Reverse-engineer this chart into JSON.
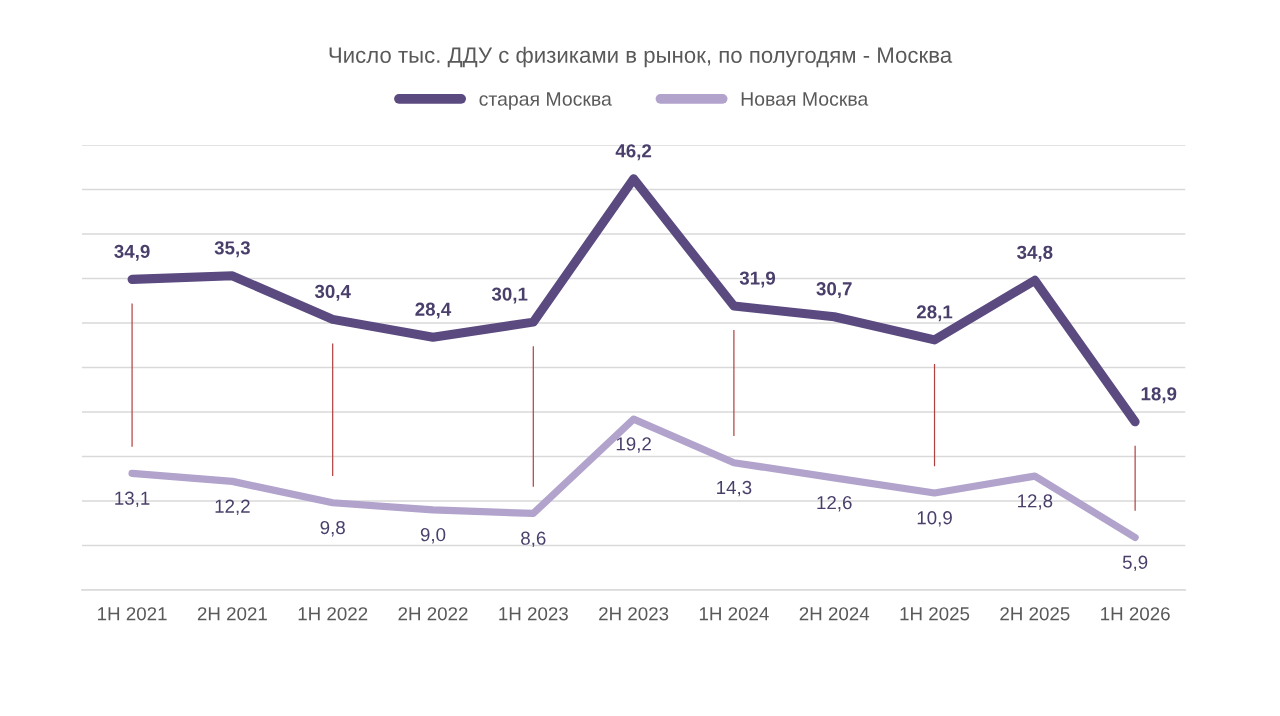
{
  "chart_data": {
    "type": "line",
    "title": "Число тыс. ДДУ с физиками в рынок, по полугодям - Москва",
    "categories": [
      "1H 2021",
      "2H 2021",
      "1H 2022",
      "2H 2022",
      "1H 2023",
      "2H 2023",
      "1H 2024",
      "2H 2024",
      "1H 2025",
      "2H 2025",
      "1H 2026"
    ],
    "series": [
      {
        "name": "старая Москва",
        "color": "#5b4a80",
        "values": [
          34.9,
          35.3,
          30.4,
          28.4,
          30.1,
          46.2,
          31.9,
          30.7,
          28.1,
          34.8,
          18.9
        ],
        "value_labels": [
          "34,9",
          "35,3",
          "30,4",
          "28,4",
          "30,1",
          "46,2",
          "31,9",
          "30,7",
          "28,1",
          "34,8",
          "18,9"
        ]
      },
      {
        "name": "Новая Москва",
        "color": "#b1a3cc",
        "values": [
          13.1,
          12.2,
          9.8,
          9.0,
          8.6,
          19.2,
          14.3,
          12.6,
          10.9,
          12.8,
          5.9
        ],
        "value_labels": [
          "13,1",
          "12,2",
          "9,8",
          "9,0",
          "8,6",
          "19,2",
          "14,3",
          "12,6",
          "10,9",
          "12,8",
          "5,9"
        ]
      }
    ],
    "ylim": [
      0,
      50
    ],
    "yticks": [
      {
        "value": 0,
        "label": null
      },
      {
        "value": 5,
        "label": null
      },
      {
        "value": 10,
        "label": null
      },
      {
        "value": 15,
        "label": null
      },
      {
        "value": 20,
        "label": null
      },
      {
        "value": 25,
        "label": null
      },
      {
        "value": 30,
        "label": null
      },
      {
        "value": 35,
        "label": null
      },
      {
        "value": 40,
        "label": null
      },
      {
        "value": 45,
        "label": null
      },
      {
        "value": 50,
        "label": null
      }
    ],
    "grid": "y",
    "legend": "top",
    "tick_labels": "x",
    "line_style": "solid"
  }
}
